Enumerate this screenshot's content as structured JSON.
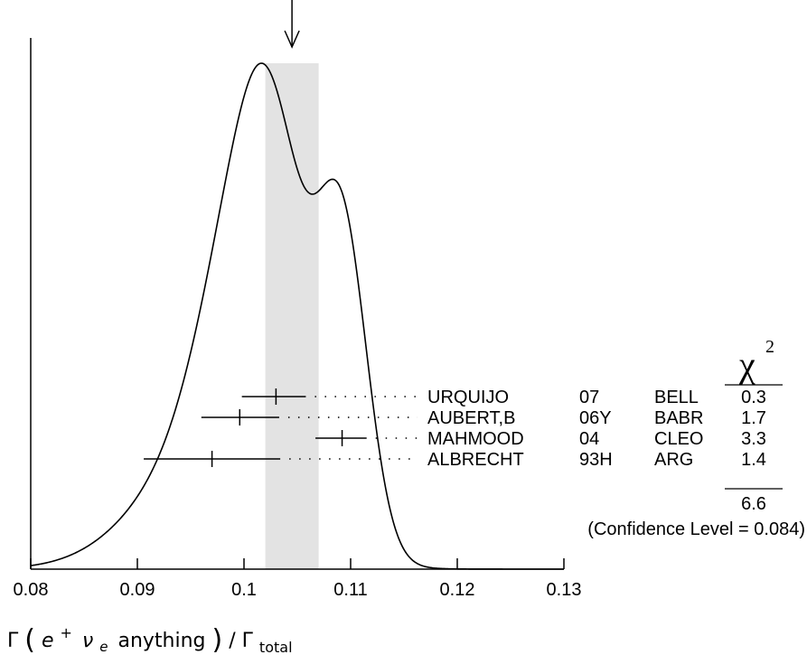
{
  "chart_data": {
    "type": "ideogram",
    "xlabel": {
      "prefix": "Γ",
      "particle1": "e",
      "particle1_sup": "+",
      "particle2": "ν",
      "particle2_sub": "e",
      "rest": "anything",
      "denominator": "Γ",
      "denominator_sub": "total"
    },
    "xlim": [
      0.08,
      0.13
    ],
    "x_ticks": [
      0.08,
      0.09,
      0.1,
      0.11,
      0.12,
      0.13
    ],
    "x_tick_labels": [
      "0.08",
      "0.09",
      "0.1",
      "0.11",
      "0.12",
      "0.13"
    ],
    "weighted_average": 0.1045,
    "error_band": [
      0.102,
      0.107
    ],
    "measurements": [
      {
        "author": "URQUIJO",
        "year": "07",
        "experiment": "BELL",
        "value": 0.103,
        "low": 0.0998,
        "high": 0.1058,
        "chi2": "0.3"
      },
      {
        "author": "AUBERT,B",
        "year": "06Y",
        "experiment": "BABR",
        "value": 0.0996,
        "low": 0.096,
        "high": 0.1033,
        "chi2": "1.7"
      },
      {
        "author": "MAHMOOD",
        "year": "04",
        "experiment": "CLEO",
        "value": 0.1092,
        "low": 0.1067,
        "high": 0.1115,
        "chi2": "3.3"
      },
      {
        "author": "ALBRECHT",
        "year": "93H",
        "experiment": "ARG",
        "value": 0.097,
        "low": 0.0906,
        "high": 0.1034,
        "chi2": "1.4"
      }
    ],
    "chi2_header_symbol": "χ",
    "chi2_header_exponent": "2",
    "chi2_total": "6.6",
    "confidence_level_text": "(Confidence Level = 0.084)"
  }
}
